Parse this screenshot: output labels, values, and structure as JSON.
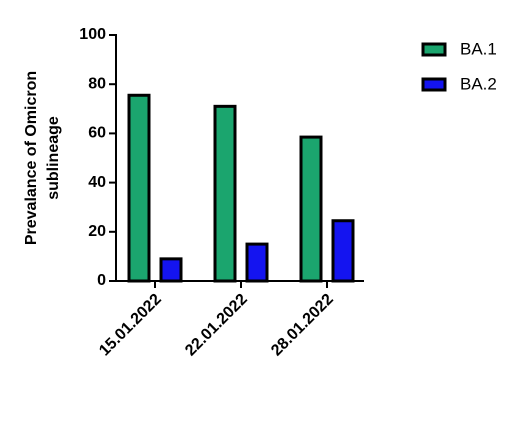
{
  "chart_data": {
    "type": "bar",
    "ylabel": [
      "Prevalance of Omicron",
      "sublineage"
    ],
    "categories": [
      "15.01.2022",
      "22.01.2022",
      "28.01.2022"
    ],
    "series": [
      {
        "name": "BA.1",
        "color": "#1ba56e",
        "values": [
          75.5,
          71,
          58.5
        ]
      },
      {
        "name": "BA.2",
        "color": "#1414f0",
        "values": [
          9,
          15,
          24.5
        ]
      }
    ],
    "ylim": [
      0,
      100
    ],
    "yticks": [
      0,
      20,
      40,
      60,
      80,
      100
    ],
    "legend": "top-right"
  }
}
